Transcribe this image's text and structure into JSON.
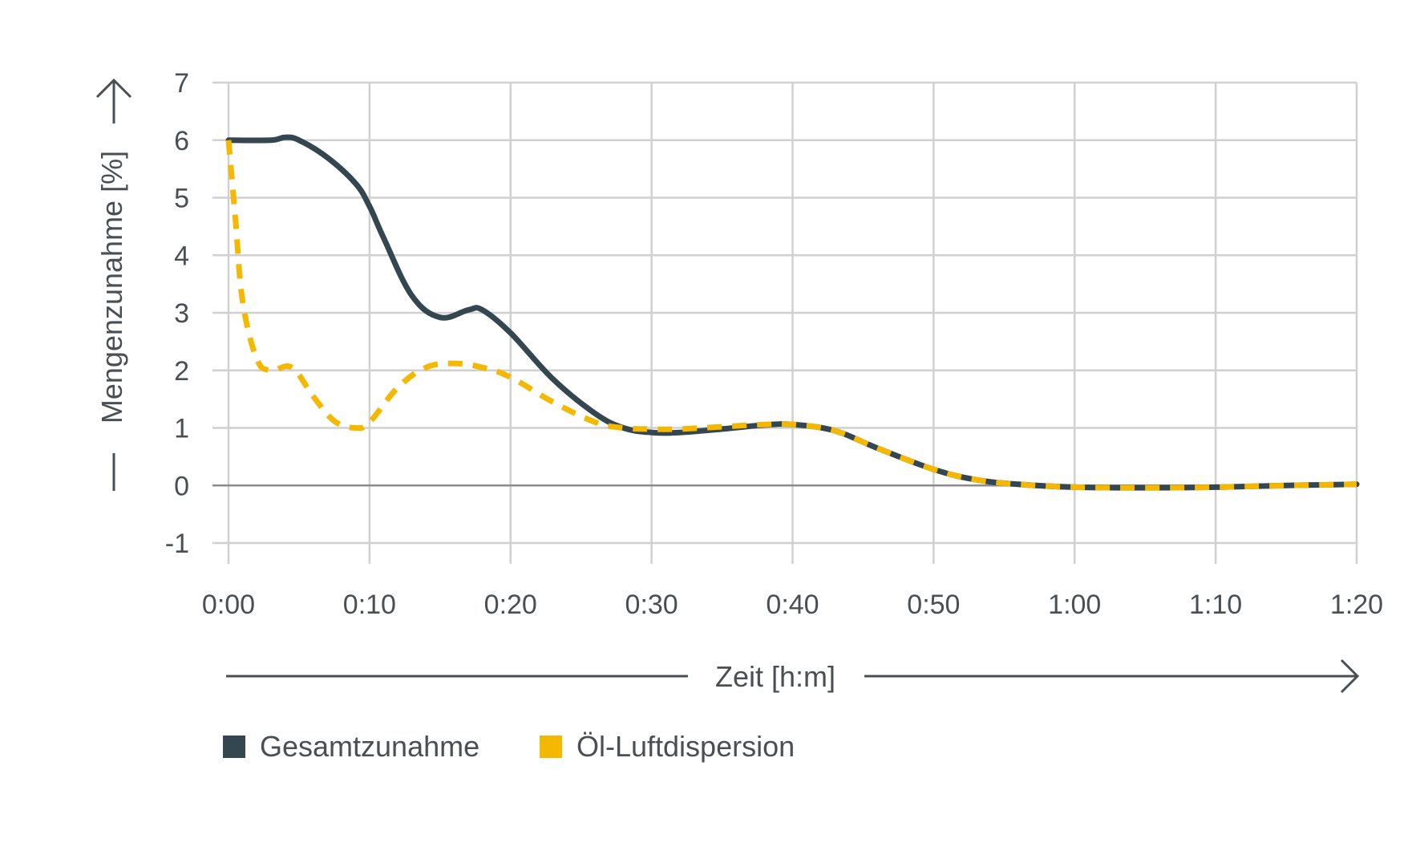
{
  "chart_data": {
    "type": "line",
    "xlabel": "Zeit [h:m]",
    "ylabel": "Mengenzunahme [%]",
    "ylim": [
      -1,
      7
    ],
    "xlim": [
      0,
      80
    ],
    "grid": true,
    "legend_position": "bottom-left",
    "x_tick_labels": [
      "0:00",
      "0:10",
      "0:20",
      "0:30",
      "0:40",
      "0:50",
      "1:00",
      "1:10",
      "1:20"
    ],
    "y_tick_labels": [
      "-1",
      "0",
      "1",
      "2",
      "3",
      "4",
      "5",
      "6",
      "7"
    ],
    "x_units": "minutes",
    "series": [
      {
        "name": "Gesamtzunahme",
        "color": "#344650",
        "style": "solid",
        "x": [
          0,
          3,
          4,
          5,
          7,
          9,
          10,
          11,
          13,
          15,
          17,
          18,
          20,
          23,
          26,
          28,
          30,
          32,
          35,
          38,
          40,
          43,
          46,
          50,
          53,
          56,
          60,
          65,
          70,
          75,
          80
        ],
        "y": [
          6.0,
          6.0,
          6.05,
          6.0,
          5.7,
          5.25,
          4.85,
          4.3,
          3.3,
          2.92,
          3.05,
          3.05,
          2.65,
          1.85,
          1.25,
          1.0,
          0.92,
          0.92,
          0.98,
          1.05,
          1.06,
          0.95,
          0.65,
          0.28,
          0.1,
          0.02,
          -0.03,
          -0.04,
          -0.03,
          0.0,
          0.02
        ]
      },
      {
        "name": "Öl-Luftdispersion",
        "color": "#f5b800",
        "style": "dashed",
        "x": [
          0,
          0.5,
          1,
          2,
          3,
          4.5,
          6,
          7.5,
          9,
          10,
          12,
          14,
          16,
          18,
          20,
          23,
          26,
          28,
          30,
          32,
          35,
          38,
          40,
          43,
          46,
          50,
          53,
          56,
          60,
          65,
          70,
          75,
          80
        ],
        "y": [
          6.0,
          4.6,
          3.2,
          2.2,
          2.0,
          2.05,
          1.55,
          1.12,
          1.0,
          1.1,
          1.7,
          2.05,
          2.12,
          2.05,
          1.88,
          1.45,
          1.1,
          1.0,
          0.98,
          0.98,
          1.02,
          1.06,
          1.06,
          0.95,
          0.65,
          0.28,
          0.1,
          0.02,
          -0.03,
          -0.04,
          -0.03,
          0.0,
          0.02
        ]
      }
    ]
  }
}
